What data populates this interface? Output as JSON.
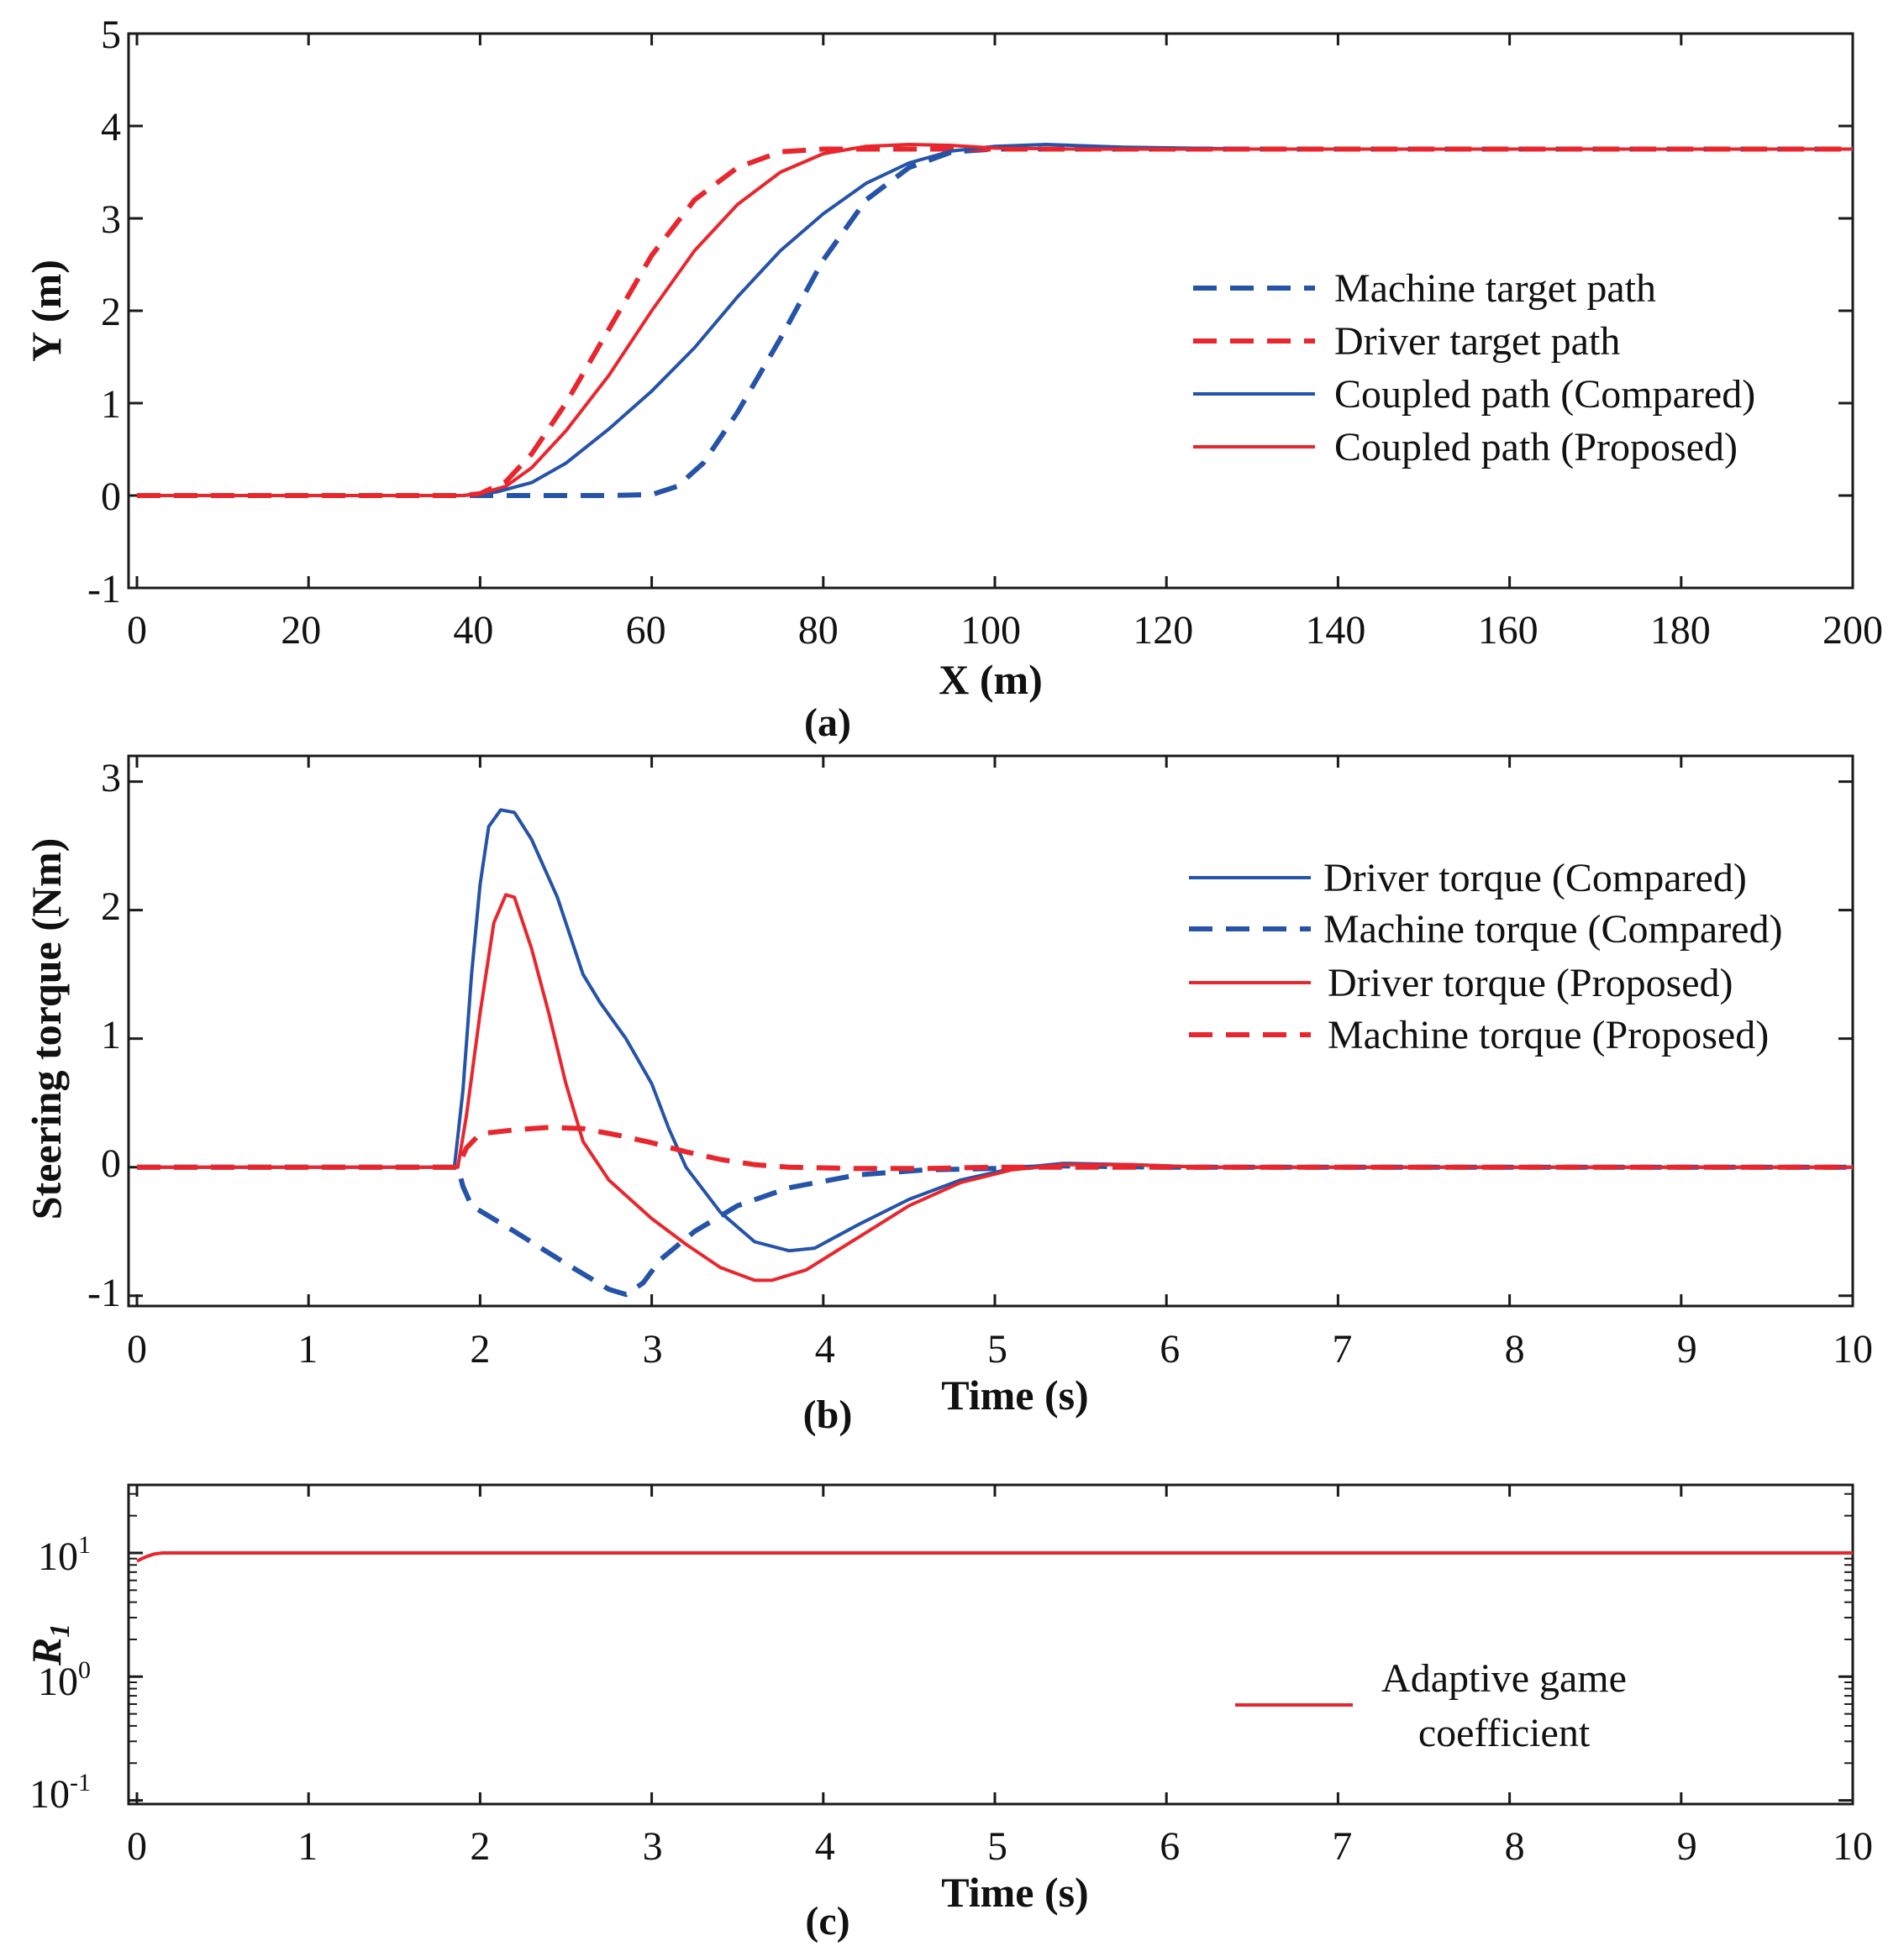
{
  "colors": {
    "blue": "#2553a8",
    "red": "#e8262d",
    "axis": "#1a1a1a"
  },
  "chart_data": [
    {
      "type": "line",
      "panel_label": "(a)",
      "xlabel": "X (m)",
      "ylabel": "Y (m)",
      "xlim": [
        0,
        200
      ],
      "ylim": [
        -1,
        5
      ],
      "xticks": [
        "0",
        "20",
        "40",
        "60",
        "80",
        "100",
        "120",
        "140",
        "160",
        "180",
        "200"
      ],
      "yticks": [
        "-1",
        "0",
        "1",
        "2",
        "3",
        "4",
        "5"
      ],
      "legend_position": "center-right",
      "series": [
        {
          "name": "Machine target path",
          "color": "blue",
          "dash": true,
          "points": [
            [
              0,
              0
            ],
            [
              40,
              0
            ],
            [
              55,
              0
            ],
            [
              60,
              0.01
            ],
            [
              63,
              0.1
            ],
            [
              66,
              0.35
            ],
            [
              70,
              0.9
            ],
            [
              75,
              1.7
            ],
            [
              80,
              2.55
            ],
            [
              85,
              3.2
            ],
            [
              90,
              3.55
            ],
            [
              95,
              3.72
            ],
            [
              100,
              3.75
            ],
            [
              120,
              3.75
            ],
            [
              200,
              3.75
            ]
          ]
        },
        {
          "name": "Driver target path",
          "color": "red",
          "dash": true,
          "points": [
            [
              0,
              0
            ],
            [
              38,
              0
            ],
            [
              40,
              0.02
            ],
            [
              43,
              0.15
            ],
            [
              46,
              0.45
            ],
            [
              50,
              1.0
            ],
            [
              55,
              1.8
            ],
            [
              60,
              2.6
            ],
            [
              65,
              3.2
            ],
            [
              70,
              3.55
            ],
            [
              75,
              3.72
            ],
            [
              80,
              3.75
            ],
            [
              90,
              3.75
            ],
            [
              200,
              3.75
            ]
          ]
        },
        {
          "name": "Coupled path (Compared)",
          "color": "blue",
          "dash": false,
          "points": [
            [
              0,
              0
            ],
            [
              38,
              0
            ],
            [
              42,
              0.04
            ],
            [
              46,
              0.14
            ],
            [
              50,
              0.35
            ],
            [
              55,
              0.72
            ],
            [
              60,
              1.13
            ],
            [
              65,
              1.6
            ],
            [
              70,
              2.15
            ],
            [
              75,
              2.65
            ],
            [
              80,
              3.05
            ],
            [
              85,
              3.38
            ],
            [
              90,
              3.6
            ],
            [
              95,
              3.73
            ],
            [
              100,
              3.78
            ],
            [
              106,
              3.8
            ],
            [
              115,
              3.77
            ],
            [
              130,
              3.75
            ],
            [
              200,
              3.75
            ]
          ]
        },
        {
          "name": "Coupled path (Proposed)",
          "color": "red",
          "dash": false,
          "points": [
            [
              0,
              0
            ],
            [
              38,
              0
            ],
            [
              40,
              0.02
            ],
            [
              43,
              0.1
            ],
            [
              46,
              0.3
            ],
            [
              50,
              0.7
            ],
            [
              55,
              1.3
            ],
            [
              60,
              2.0
            ],
            [
              65,
              2.65
            ],
            [
              70,
              3.15
            ],
            [
              75,
              3.5
            ],
            [
              80,
              3.7
            ],
            [
              85,
              3.78
            ],
            [
              90,
              3.8
            ],
            [
              95,
              3.79
            ],
            [
              100,
              3.76
            ],
            [
              110,
              3.75
            ],
            [
              200,
              3.75
            ]
          ]
        }
      ]
    },
    {
      "type": "line",
      "panel_label": "(b)",
      "xlabel": "Time (s)",
      "ylabel": "Steering torque (Nm)",
      "xlim": [
        0,
        10
      ],
      "ylim": [
        -1.08,
        3.2
      ],
      "xticks": [
        "0",
        "1",
        "2",
        "3",
        "4",
        "5",
        "6",
        "7",
        "8",
        "9",
        "10"
      ],
      "yticks": [
        "-1",
        "0",
        "1",
        "2",
        "3"
      ],
      "legend_position": "top-right",
      "series": [
        {
          "name": "Driver torque (Compared)",
          "color": "blue",
          "dash": false,
          "points": [
            [
              0,
              0
            ],
            [
              1.85,
              0
            ],
            [
              1.9,
              0.6
            ],
            [
              1.95,
              1.5
            ],
            [
              2.0,
              2.2
            ],
            [
              2.05,
              2.65
            ],
            [
              2.12,
              2.78
            ],
            [
              2.2,
              2.76
            ],
            [
              2.3,
              2.55
            ],
            [
              2.45,
              2.1
            ],
            [
              2.6,
              1.5
            ],
            [
              2.7,
              1.28
            ],
            [
              2.85,
              1.0
            ],
            [
              3.0,
              0.65
            ],
            [
              3.1,
              0.3
            ],
            [
              3.2,
              0.0
            ],
            [
              3.4,
              -0.35
            ],
            [
              3.6,
              -0.58
            ],
            [
              3.8,
              -0.65
            ],
            [
              3.95,
              -0.63
            ],
            [
              4.2,
              -0.45
            ],
            [
              4.5,
              -0.25
            ],
            [
              4.8,
              -0.1
            ],
            [
              5.1,
              -0.01
            ],
            [
              5.4,
              0.03
            ],
            [
              5.8,
              0.02
            ],
            [
              6.2,
              0.0
            ],
            [
              10,
              0.0
            ]
          ]
        },
        {
          "name": "Machine torque (Compared)",
          "color": "blue",
          "dash": true,
          "points": [
            [
              0,
              0
            ],
            [
              1.87,
              0
            ],
            [
              1.9,
              -0.15
            ],
            [
              1.95,
              -0.3
            ],
            [
              2.2,
              -0.5
            ],
            [
              2.5,
              -0.75
            ],
            [
              2.75,
              -0.95
            ],
            [
              2.85,
              -0.99
            ],
            [
              2.95,
              -0.9
            ],
            [
              3.05,
              -0.72
            ],
            [
              3.25,
              -0.5
            ],
            [
              3.5,
              -0.3
            ],
            [
              3.8,
              -0.16
            ],
            [
              4.2,
              -0.06
            ],
            [
              4.6,
              -0.02
            ],
            [
              5.0,
              -0.01
            ],
            [
              5.4,
              0.01
            ],
            [
              6.0,
              0.0
            ],
            [
              10,
              0.0
            ]
          ]
        },
        {
          "name": "Driver torque (Proposed)",
          "color": "red",
          "dash": false,
          "points": [
            [
              0,
              0
            ],
            [
              1.87,
              0
            ],
            [
              1.92,
              0.4
            ],
            [
              2.0,
              1.2
            ],
            [
              2.08,
              1.9
            ],
            [
              2.15,
              2.12
            ],
            [
              2.2,
              2.1
            ],
            [
              2.3,
              1.7
            ],
            [
              2.4,
              1.2
            ],
            [
              2.5,
              0.65
            ],
            [
              2.6,
              0.2
            ],
            [
              2.75,
              -0.1
            ],
            [
              3.0,
              -0.4
            ],
            [
              3.2,
              -0.6
            ],
            [
              3.4,
              -0.78
            ],
            [
              3.6,
              -0.88
            ],
            [
              3.7,
              -0.88
            ],
            [
              3.9,
              -0.8
            ],
            [
              4.2,
              -0.55
            ],
            [
              4.5,
              -0.3
            ],
            [
              4.8,
              -0.12
            ],
            [
              5.1,
              -0.02
            ],
            [
              5.4,
              0.02
            ],
            [
              5.8,
              0.02
            ],
            [
              6.2,
              0.0
            ],
            [
              10,
              0.0
            ]
          ]
        },
        {
          "name": "Machine torque (Proposed)",
          "color": "red",
          "dash": true,
          "points": [
            [
              0,
              0
            ],
            [
              1.87,
              0
            ],
            [
              1.92,
              0.15
            ],
            [
              2.0,
              0.26
            ],
            [
              2.2,
              0.29
            ],
            [
              2.4,
              0.31
            ],
            [
              2.6,
              0.3
            ],
            [
              2.8,
              0.25
            ],
            [
              3.0,
              0.19
            ],
            [
              3.2,
              0.12
            ],
            [
              3.4,
              0.06
            ],
            [
              3.6,
              0.02
            ],
            [
              3.8,
              0.0
            ],
            [
              4.2,
              -0.01
            ],
            [
              4.6,
              -0.01
            ],
            [
              5.0,
              0.0
            ],
            [
              10,
              0.0
            ]
          ]
        }
      ]
    },
    {
      "type": "line",
      "panel_label": "(c)",
      "xlabel": "Time (s)",
      "ylabel": "R1",
      "yscale": "log",
      "xlim": [
        0,
        10
      ],
      "ylim_log10": [
        -1.03,
        1.55
      ],
      "xticks": [
        "0",
        "1",
        "2",
        "3",
        "4",
        "5",
        "6",
        "7",
        "8",
        "9",
        "10"
      ],
      "yticks": [
        {
          "base": "10",
          "exp": "-1",
          "log10": -1
        },
        {
          "base": "10",
          "exp": "0",
          "log10": 0
        },
        {
          "base": "10",
          "exp": "1",
          "log10": 1
        }
      ],
      "legend_position": "center-right",
      "series": [
        {
          "name": "Adaptive game coefficient",
          "legend_lines": [
            "Adaptive game",
            "coefficient"
          ],
          "color": "red",
          "dash": false,
          "points": [
            [
              0,
              8.6
            ],
            [
              0.03,
              9.0
            ],
            [
              0.06,
              9.4
            ],
            [
              0.1,
              9.8
            ],
            [
              0.15,
              10.0
            ],
            [
              10,
              10.0
            ]
          ]
        }
      ]
    }
  ]
}
